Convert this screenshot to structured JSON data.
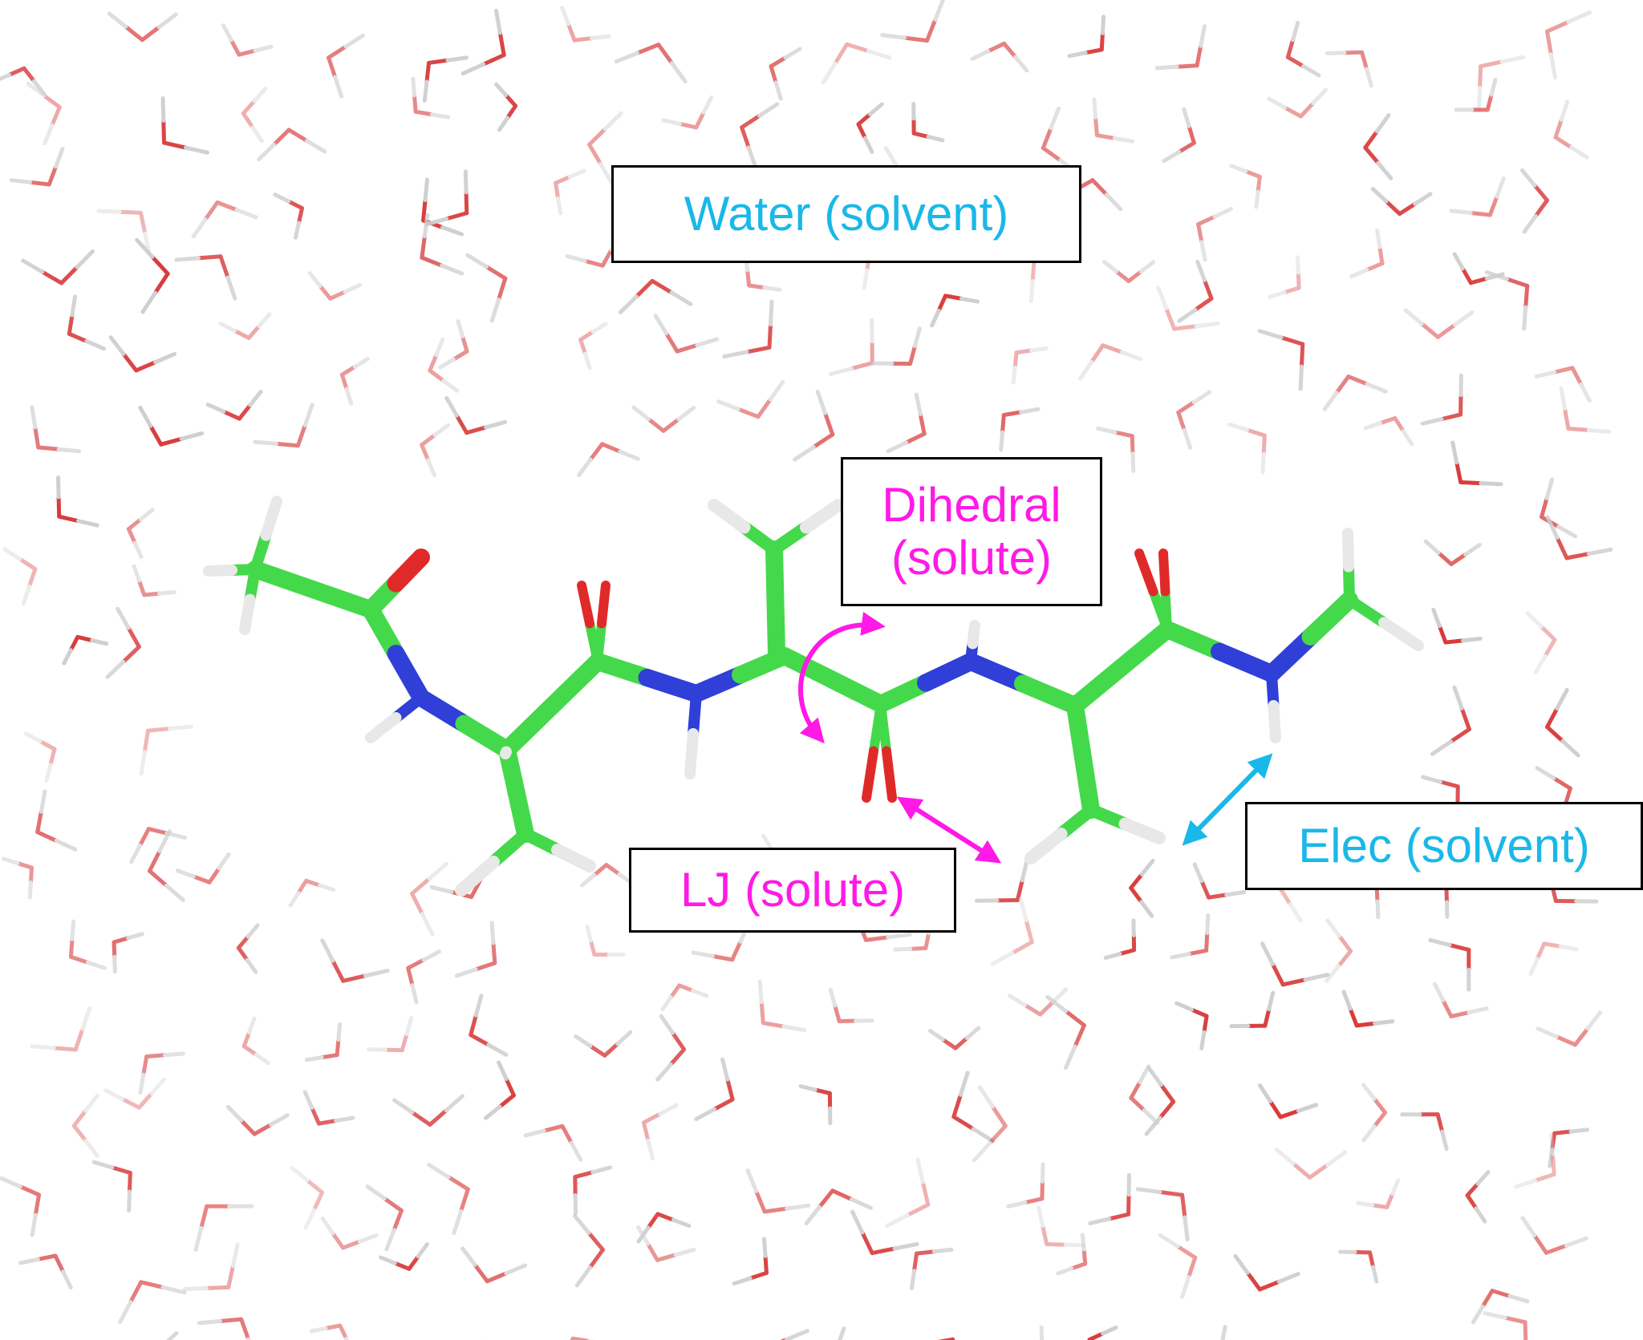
{
  "labels": {
    "water": {
      "text": "Water (solvent)",
      "color": "#1AB8E8"
    },
    "dihedral": {
      "line1": "Dihedral",
      "line2": "(solute)",
      "color": "#FF19E6"
    },
    "lj": {
      "text": "LJ (solute)",
      "color": "#FF19E6"
    },
    "elec": {
      "text": "Elec (solvent)",
      "color": "#1AB8E8"
    }
  },
  "colors": {
    "carbon": "#44D94A",
    "nitrogen": "#2F3FD8",
    "oxygen": "#E02A2A",
    "hydrogen": "#E8E8E8",
    "water_oxygen": "#D83A3A",
    "water_hydrogen": "#CFCFCF",
    "solute_arrow": "#FF19E6",
    "solvent_arrow": "#1AB8E8"
  }
}
